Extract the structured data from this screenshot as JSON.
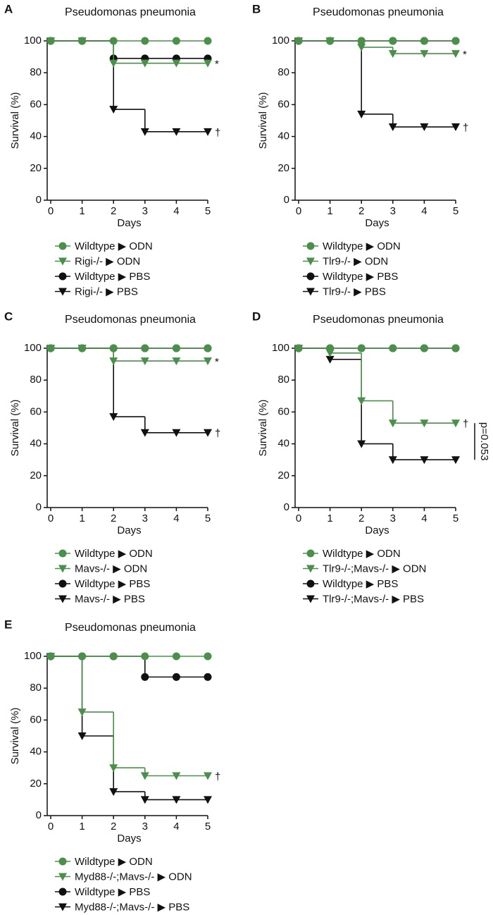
{
  "chart_data": [
    {
      "type": "step",
      "panel": "A",
      "title": "Pseudomonas pneumonia",
      "x_label": "Days",
      "y_label": "Survival (%)",
      "x": [
        0,
        1,
        2,
        3,
        4,
        5
      ],
      "xlim": [
        0,
        5
      ],
      "xticks": [
        0,
        1,
        2,
        3,
        4,
        5
      ],
      "ylim": [
        0,
        100
      ],
      "yticks": [
        0,
        20,
        40,
        60,
        80,
        100
      ],
      "series": [
        {
          "name": "Wildtype ▶ ODN",
          "color": "#4a8f4a",
          "marker": "circle",
          "values": [
            100,
            100,
            100,
            100,
            100,
            100
          ]
        },
        {
          "name": "Rigi-/- ▶ ODN",
          "color": "#4a8f4a",
          "marker": "triangle",
          "values": [
            100,
            100,
            86,
            86,
            86,
            86
          ],
          "end_label": "*"
        },
        {
          "name": "Wildtype ▶ PBS",
          "color": "#111111",
          "marker": "circle",
          "values": [
            100,
            100,
            89,
            89,
            89,
            89
          ]
        },
        {
          "name": "Rigi-/- ▶ PBS",
          "color": "#111111",
          "marker": "triangle",
          "values": [
            100,
            100,
            57,
            43,
            43,
            43
          ],
          "end_label": "†"
        }
      ]
    },
    {
      "type": "step",
      "panel": "B",
      "title": "Pseudomonas pneumonia",
      "x_label": "Days",
      "y_label": "Survival (%)",
      "x": [
        0,
        1,
        2,
        3,
        4,
        5
      ],
      "xlim": [
        0,
        5
      ],
      "xticks": [
        0,
        1,
        2,
        3,
        4,
        5
      ],
      "ylim": [
        0,
        100
      ],
      "yticks": [
        0,
        20,
        40,
        60,
        80,
        100
      ],
      "series": [
        {
          "name": "Wildtype ▶ ODN",
          "color": "#4a8f4a",
          "marker": "circle",
          "values": [
            100,
            100,
            100,
            100,
            100,
            100
          ]
        },
        {
          "name": "Tlr9-/- ▶ ODN",
          "color": "#4a8f4a",
          "marker": "triangle",
          "values": [
            100,
            100,
            96,
            92,
            92,
            92
          ],
          "end_label": "*"
        },
        {
          "name": "Wildtype ▶ PBS",
          "color": "#111111",
          "marker": "circle",
          "values": [
            100,
            100,
            100,
            100,
            100,
            100
          ]
        },
        {
          "name": "Tlr9-/- ▶ PBS",
          "color": "#111111",
          "marker": "triangle",
          "values": [
            100,
            100,
            54,
            46,
            46,
            46
          ],
          "end_label": "†"
        }
      ]
    },
    {
      "type": "step",
      "panel": "C",
      "title": "Pseudomonas pneumonia",
      "x_label": "Days",
      "y_label": "Survival (%)",
      "x": [
        0,
        1,
        2,
        3,
        4,
        5
      ],
      "xlim": [
        0,
        5
      ],
      "xticks": [
        0,
        1,
        2,
        3,
        4,
        5
      ],
      "ylim": [
        0,
        100
      ],
      "yticks": [
        0,
        20,
        40,
        60,
        80,
        100
      ],
      "series": [
        {
          "name": "Wildtype ▶ ODN",
          "color": "#4a8f4a",
          "marker": "circle",
          "values": [
            100,
            100,
            100,
            100,
            100,
            100
          ]
        },
        {
          "name": "Mavs-/- ▶ ODN",
          "color": "#4a8f4a",
          "marker": "triangle",
          "values": [
            100,
            100,
            92,
            92,
            92,
            92
          ],
          "end_label": "*"
        },
        {
          "name": "Wildtype ▶ PBS",
          "color": "#111111",
          "marker": "circle",
          "values": [
            100,
            100,
            100,
            100,
            100,
            100
          ]
        },
        {
          "name": "Mavs-/- ▶ PBS",
          "color": "#111111",
          "marker": "triangle",
          "values": [
            100,
            100,
            57,
            47,
            47,
            47
          ],
          "end_label": "†"
        }
      ]
    },
    {
      "type": "step",
      "panel": "D",
      "title": "Pseudomonas pneumonia",
      "x_label": "Days",
      "y_label": "Survival (%)",
      "bracket_label": "p=0.053",
      "x": [
        0,
        1,
        2,
        3,
        4,
        5
      ],
      "xlim": [
        0,
        5
      ],
      "xticks": [
        0,
        1,
        2,
        3,
        4,
        5
      ],
      "ylim": [
        0,
        100
      ],
      "yticks": [
        0,
        20,
        40,
        60,
        80,
        100
      ],
      "series": [
        {
          "name": "Wildtype ▶ ODN",
          "color": "#4a8f4a",
          "marker": "circle",
          "values": [
            100,
            100,
            100,
            100,
            100,
            100
          ]
        },
        {
          "name": "Tlr9-/-;Mavs-/- ▶ ODN",
          "color": "#4a8f4a",
          "marker": "triangle",
          "values": [
            100,
            97,
            67,
            53,
            53,
            53
          ],
          "end_label": "†"
        },
        {
          "name": "Wildtype ▶ PBS",
          "color": "#111111",
          "marker": "circle",
          "values": [
            100,
            100,
            100,
            100,
            100,
            100
          ]
        },
        {
          "name": "Tlr9-/-;Mavs-/- ▶ PBS",
          "color": "#111111",
          "marker": "triangle",
          "values": [
            100,
            93,
            40,
            30,
            30,
            30
          ]
        }
      ]
    },
    {
      "type": "step",
      "panel": "E",
      "title": "Pseudomonas pneumonia",
      "x_label": "Days",
      "y_label": "Survival (%)",
      "x": [
        0,
        1,
        2,
        3,
        4,
        5
      ],
      "xlim": [
        0,
        5
      ],
      "xticks": [
        0,
        1,
        2,
        3,
        4,
        5
      ],
      "ylim": [
        0,
        100
      ],
      "yticks": [
        0,
        20,
        40,
        60,
        80,
        100
      ],
      "series": [
        {
          "name": "Wildtype ▶ ODN",
          "color": "#4a8f4a",
          "marker": "circle",
          "values": [
            100,
            100,
            100,
            100,
            100,
            100
          ]
        },
        {
          "name": "Myd88-/-;Mavs-/- ▶ ODN",
          "color": "#4a8f4a",
          "marker": "triangle",
          "values": [
            100,
            65,
            30,
            25,
            25,
            25
          ],
          "end_label": "†"
        },
        {
          "name": "Wildtype ▶ PBS",
          "color": "#111111",
          "marker": "circle",
          "values": [
            100,
            100,
            100,
            87,
            87,
            87
          ]
        },
        {
          "name": "Myd88-/-;Mavs-/- ▶ PBS",
          "color": "#111111",
          "marker": "triangle",
          "values": [
            100,
            50,
            15,
            10,
            10,
            10
          ]
        }
      ]
    }
  ]
}
